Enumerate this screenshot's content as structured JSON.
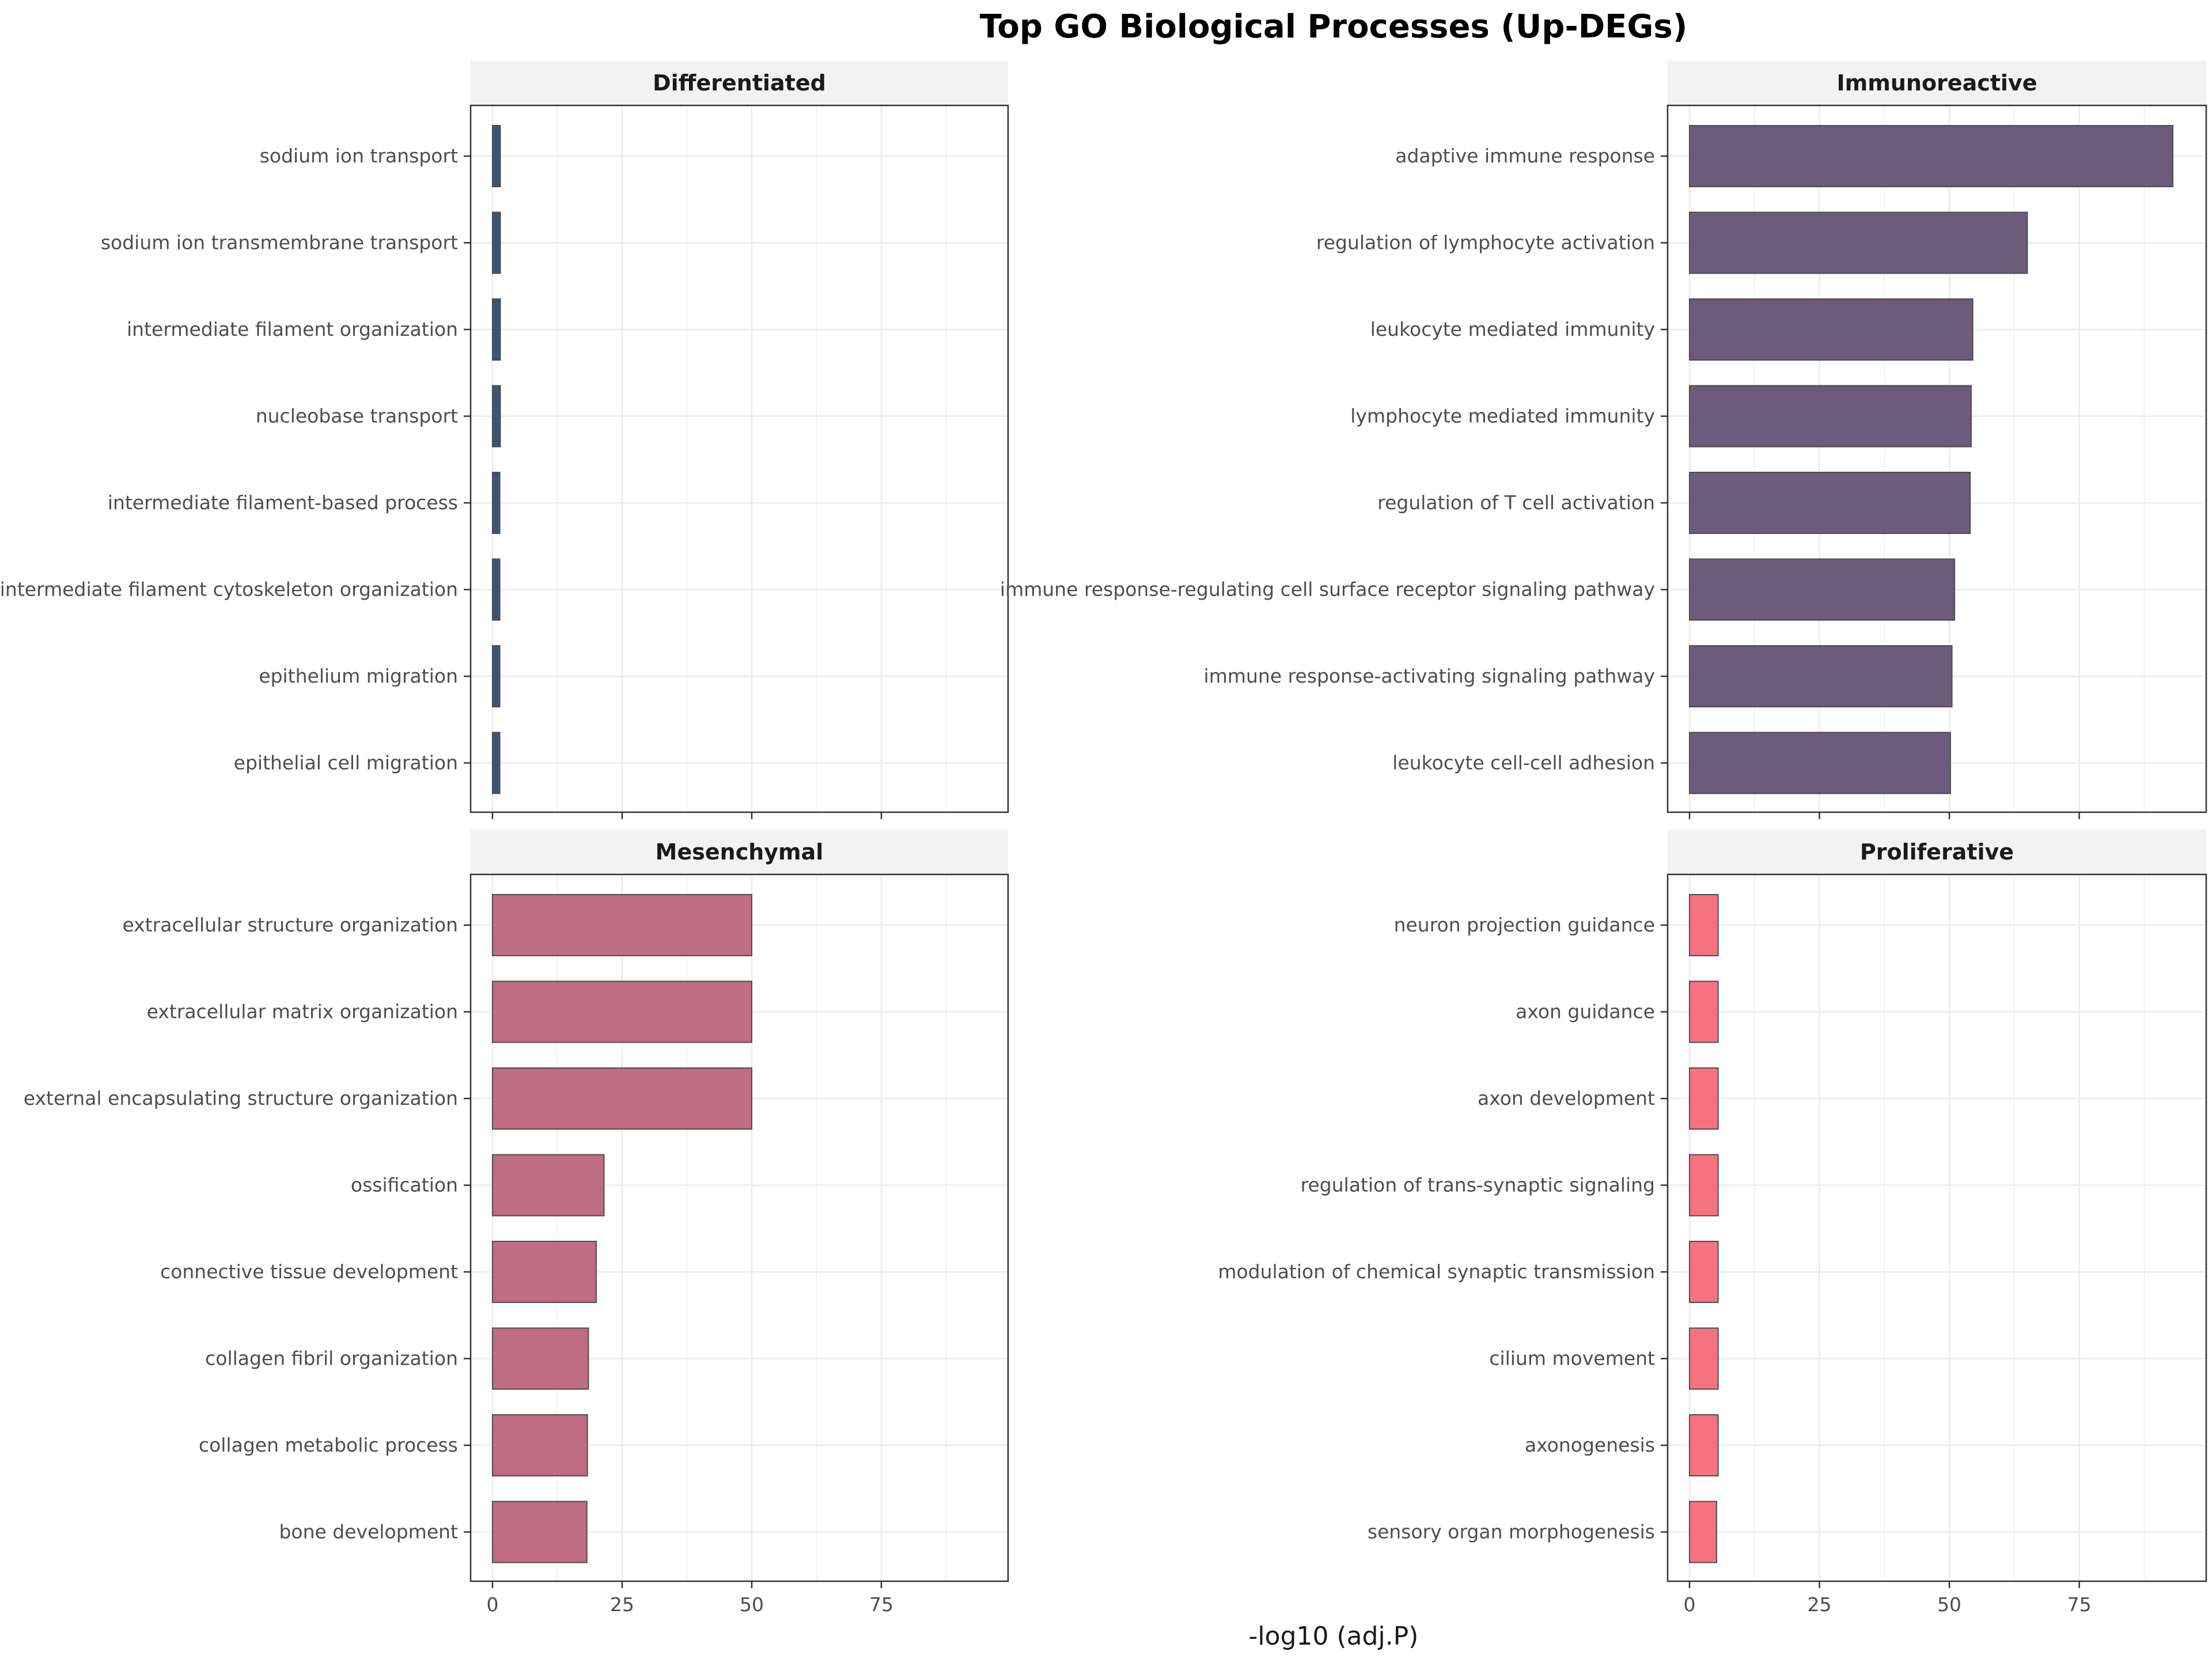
{
  "chart_data": {
    "type": "bar",
    "orientation": "horizontal",
    "title": "Top GO Biological Processes (Up-DEGs)",
    "xlabel": "-log10 (adj.P)",
    "xlim": [
      0,
      95
    ],
    "xticks": [
      0,
      25,
      50,
      75
    ],
    "grid": true,
    "legend": "none",
    "panels": [
      {
        "name": "Differentiated",
        "color": "#3b5575",
        "categories": [
          "sodium ion transport",
          "sodium ion transmembrane transport",
          "intermediate filament organization",
          "nucleobase transport",
          "intermediate filament-based process",
          "intermediate filament cytoskeleton organization",
          "epithelium migration",
          "epithelial cell migration"
        ],
        "values": [
          1.5,
          1.5,
          1.5,
          1.5,
          1.4,
          1.4,
          1.4,
          1.4
        ]
      },
      {
        "name": "Immunoreactive",
        "color": "#6c5b7b",
        "categories": [
          "adaptive immune response",
          "regulation of lymphocyte activation",
          "leukocyte mediated immunity",
          "lymphocyte mediated immunity",
          "regulation of T cell activation",
          "immune response-regulating cell surface receptor signaling pathway",
          "immune response-activating signaling pathway",
          "leukocyte cell-cell adhesion"
        ],
        "values": [
          93,
          65,
          54.5,
          54.2,
          54,
          51,
          50.5,
          50.2
        ]
      },
      {
        "name": "Mesenchymal",
        "color": "#c06c84",
        "categories": [
          "extracellular structure organization",
          "extracellular matrix organization",
          "external encapsulating structure organization",
          "ossification",
          "connective tissue development",
          "collagen fibril organization",
          "collagen metabolic process",
          "bone development"
        ],
        "values": [
          50,
          50,
          50,
          21.5,
          20,
          18.5,
          18.3,
          18.2
        ]
      },
      {
        "name": "Proliferative",
        "color": "#f67280",
        "categories": [
          "neuron projection guidance",
          "axon guidance",
          "axon development",
          "regulation of trans-synaptic signaling",
          "modulation of chemical synaptic transmission",
          "cilium movement",
          "axonogenesis",
          "sensory organ morphogenesis"
        ],
        "values": [
          5.5,
          5.5,
          5.5,
          5.5,
          5.5,
          5.5,
          5.5,
          5.2
        ]
      }
    ]
  }
}
